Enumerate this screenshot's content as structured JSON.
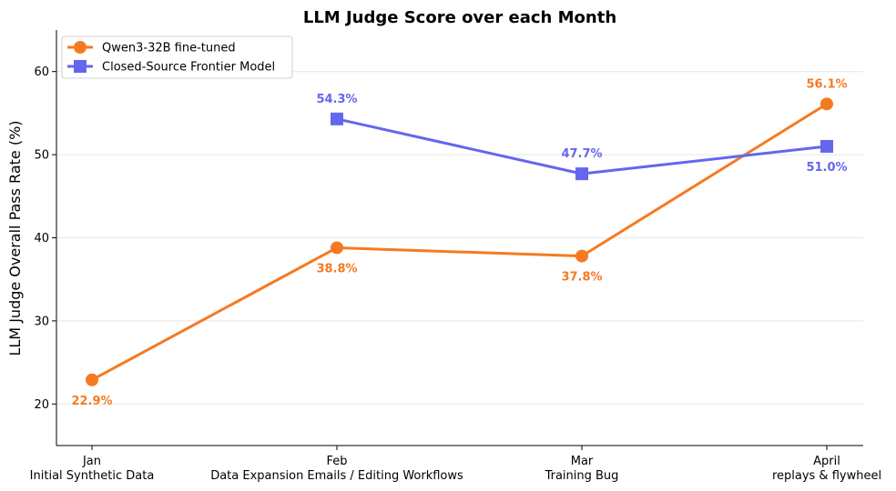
{
  "chart_data": {
    "type": "line",
    "title": "LLM Judge Score over each Month",
    "xlabel": "",
    "ylabel": "LLM Judge Overall Pass Rate (%)",
    "ylim": [
      15,
      65
    ],
    "yticks": [
      20,
      30,
      40,
      50,
      60
    ],
    "grid": "horizontal",
    "legend_position": "top-left",
    "categories": [
      [
        "Jan",
        "Initial Synthetic Data"
      ],
      [
        "Feb",
        "Data Expansion Emails / Editing Workflows"
      ],
      [
        "Mar",
        "Training Bug"
      ],
      [
        "April",
        "replays & flywheel"
      ]
    ],
    "series": [
      {
        "name": "Qwen3-32B fine-tuned",
        "color": "#f47a22",
        "marker": "circle",
        "values": [
          22.9,
          38.8,
          37.8,
          56.1
        ],
        "labels": [
          "22.9%",
          "38.8%",
          "37.8%",
          "56.1%"
        ],
        "label_pos": [
          "below",
          "below",
          "below",
          "above"
        ]
      },
      {
        "name": "Closed-Source Frontier Model",
        "color": "#6466ee",
        "marker": "square",
        "values": [
          null,
          54.3,
          47.7,
          51.0
        ],
        "labels": [
          null,
          "54.3%",
          "47.7%",
          "51.0%"
        ],
        "label_pos": [
          null,
          "above",
          "above",
          "below"
        ]
      }
    ]
  }
}
